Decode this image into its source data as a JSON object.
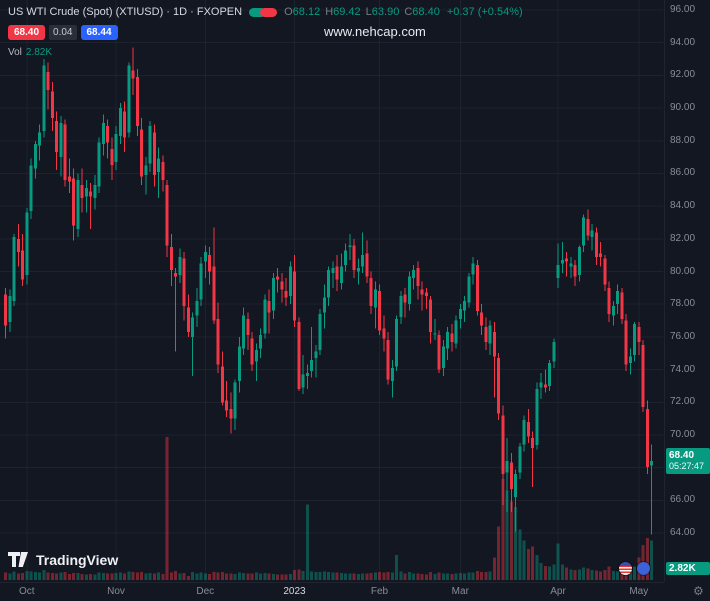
{
  "colors": {
    "bg": "#131722",
    "grid": "#1e222d",
    "up": "#089981",
    "down": "#f23645",
    "bid_bg": "#f23645",
    "ask_bg": "#2962ff",
    "badge_bg": "#089981",
    "text": "#d1d4dc",
    "text_dim": "#787b86"
  },
  "header": {
    "symbol_title": "US WTI Crude (Spot) (XTIUSD) · 1D · FXOPEN",
    "ohlc": [
      {
        "k": "O",
        "v": "68.12"
      },
      {
        "k": "H",
        "v": "69.42"
      },
      {
        "k": "L",
        "v": "63.90"
      },
      {
        "k": "C",
        "v": "68.40"
      }
    ],
    "change": "+0.37 (+0.54%)",
    "bid": "68.40",
    "spread": "0.04",
    "ask": "68.44",
    "vol_label": "Vol",
    "vol_value": "2.82K"
  },
  "watermark": "www.nehcap.com",
  "price_axis": {
    "last_price_label": "68.40",
    "countdown": "05:27:47",
    "volume_badge": "2.82K"
  },
  "footer": {
    "logo_text": "TradingView"
  },
  "icons": {
    "gear": "⚙"
  },
  "chart_data": {
    "type": "candlestick",
    "title": "US WTI Crude (Spot)",
    "symbol": "XTIUSD",
    "interval": "1D",
    "provider": "FXOPEN",
    "last_price": 68.4,
    "last_open": 68.12,
    "last_high": 69.42,
    "last_low": 63.9,
    "last_change": 0.37,
    "last_change_pct": 0.54,
    "current_volume": 2820,
    "price_range": [
      64,
      96
    ],
    "price_ticks": [
      [
        96,
        "96.00"
      ],
      [
        94,
        "94.00"
      ],
      [
        92,
        "92.00"
      ],
      [
        90,
        "90.00"
      ],
      [
        88,
        "88.00"
      ],
      [
        86,
        "86.00"
      ],
      [
        84,
        "84.00"
      ],
      [
        82,
        "82.00"
      ],
      [
        80,
        "80.00"
      ],
      [
        78,
        "78.00"
      ],
      [
        76,
        "76.00"
      ],
      [
        74,
        "74.00"
      ],
      [
        72,
        "72.00"
      ],
      [
        70,
        "70.00"
      ],
      [
        68,
        "68.00"
      ],
      [
        66,
        "66.00"
      ],
      [
        64,
        "64.00"
      ]
    ],
    "time_ticks": [
      [
        5,
        "Oct"
      ],
      [
        26,
        "Nov"
      ],
      [
        47,
        "Dec"
      ],
      [
        68,
        "2023"
      ],
      [
        88,
        "Feb"
      ],
      [
        107,
        "Mar"
      ],
      [
        130,
        "Apr"
      ],
      [
        149,
        "May"
      ]
    ],
    "candles": [
      [
        78.6,
        79.0,
        75.9,
        76.7,
        520
      ],
      [
        76.9,
        78.9,
        76.3,
        78.5,
        480
      ],
      [
        78.2,
        82.3,
        77.9,
        82.1,
        610
      ],
      [
        82.0,
        82.9,
        80.3,
        81.2,
        450
      ],
      [
        81.3,
        82.3,
        79.1,
        79.5,
        500
      ],
      [
        79.8,
        83.9,
        79.2,
        83.6,
        640
      ],
      [
        83.7,
        86.9,
        83.2,
        86.5,
        620
      ],
      [
        86.3,
        88.0,
        85.7,
        87.8,
        560
      ],
      [
        87.7,
        89.0,
        86.8,
        88.5,
        540
      ],
      [
        88.6,
        93.0,
        88.2,
        92.6,
        700
      ],
      [
        92.2,
        92.8,
        89.9,
        91.1,
        520
      ],
      [
        91.0,
        91.6,
        88.6,
        89.4,
        500
      ],
      [
        89.2,
        89.8,
        86.2,
        87.3,
        480
      ],
      [
        87.0,
        89.5,
        85.8,
        89.1,
        530
      ],
      [
        89.0,
        89.3,
        85.2,
        85.6,
        560
      ],
      [
        85.8,
        86.9,
        84.8,
        85.5,
        420
      ],
      [
        85.7,
        86.3,
        81.9,
        82.8,
        510
      ],
      [
        82.6,
        86.0,
        82.1,
        85.6,
        490
      ],
      [
        85.3,
        86.3,
        83.6,
        84.5,
        430
      ],
      [
        84.6,
        85.6,
        83.6,
        85.1,
        410
      ],
      [
        84.9,
        85.4,
        82.6,
        84.6,
        440
      ],
      [
        84.5,
        85.9,
        83.8,
        85.3,
        400
      ],
      [
        85.2,
        88.2,
        84.8,
        87.9,
        520
      ],
      [
        87.8,
        89.6,
        87.1,
        89.1,
        500
      ],
      [
        88.9,
        89.3,
        86.9,
        87.9,
        460
      ],
      [
        87.5,
        88.2,
        85.6,
        86.5,
        480
      ],
      [
        86.7,
        88.9,
        86.2,
        88.4,
        510
      ],
      [
        88.3,
        90.3,
        87.8,
        90.0,
        540
      ],
      [
        89.8,
        90.4,
        87.3,
        88.2,
        470
      ],
      [
        88.5,
        92.8,
        88.2,
        92.6,
        620
      ],
      [
        92.3,
        93.7,
        90.8,
        91.8,
        560
      ],
      [
        91.9,
        92.4,
        88.3,
        88.9,
        540
      ],
      [
        88.7,
        89.4,
        85.3,
        85.8,
        560
      ],
      [
        85.9,
        87.0,
        84.7,
        86.5,
        480
      ],
      [
        86.6,
        89.2,
        86.1,
        88.9,
        500
      ],
      [
        88.5,
        89.0,
        85.2,
        85.9,
        470
      ],
      [
        86.1,
        87.6,
        84.5,
        86.9,
        520
      ],
      [
        86.7,
        87.1,
        84.9,
        85.6,
        430
      ],
      [
        85.3,
        85.6,
        80.9,
        81.6,
        10200
      ],
      [
        81.5,
        82.3,
        79.1,
        80.1,
        540
      ],
      [
        79.9,
        80.2,
        75.1,
        79.7,
        640
      ],
      [
        79.8,
        81.4,
        79.3,
        80.9,
        460
      ],
      [
        80.8,
        81.2,
        77.0,
        77.9,
        500
      ],
      [
        77.8,
        78.6,
        76.0,
        76.3,
        300
      ],
      [
        76.0,
        77.5,
        73.6,
        77.2,
        560
      ],
      [
        77.3,
        79.0,
        76.6,
        78.2,
        480
      ],
      [
        78.3,
        80.9,
        77.9,
        80.5,
        520
      ],
      [
        80.6,
        81.6,
        79.6,
        81.2,
        460
      ],
      [
        81.0,
        81.5,
        79.2,
        80.0,
        430
      ],
      [
        80.3,
        82.7,
        76.8,
        77.0,
        560
      ],
      [
        77.1,
        78.1,
        73.8,
        74.3,
        540
      ],
      [
        74.2,
        75.1,
        71.8,
        72.0,
        560
      ],
      [
        72.1,
        73.3,
        71.1,
        71.5,
        480
      ],
      [
        71.6,
        72.6,
        70.1,
        71.0,
        460
      ],
      [
        71.0,
        73.4,
        70.3,
        73.2,
        440
      ],
      [
        73.3,
        76.0,
        72.6,
        75.4,
        520
      ],
      [
        75.3,
        77.8,
        74.9,
        77.3,
        500
      ],
      [
        77.1,
        77.5,
        75.2,
        76.1,
        470
      ],
      [
        75.9,
        76.3,
        73.9,
        74.3,
        470
      ],
      [
        74.5,
        75.6,
        73.3,
        75.2,
        520
      ],
      [
        75.3,
        76.5,
        74.7,
        76.1,
        480
      ],
      [
        76.2,
        78.6,
        75.9,
        78.3,
        500
      ],
      [
        78.2,
        78.9,
        76.2,
        77.5,
        460
      ],
      [
        77.6,
        79.9,
        77.1,
        79.6,
        420
      ],
      [
        79.7,
        80.2,
        78.7,
        79.5,
        380
      ],
      [
        79.4,
        79.9,
        78.1,
        78.9,
        400
      ],
      [
        78.8,
        79.6,
        77.9,
        78.4,
        390
      ],
      [
        78.5,
        80.6,
        78.0,
        80.3,
        430
      ],
      [
        80.0,
        81.0,
        76.6,
        77.0,
        700
      ],
      [
        76.9,
        77.2,
        72.7,
        72.8,
        760
      ],
      [
        72.9,
        74.9,
        72.5,
        73.7,
        650
      ],
      [
        73.6,
        74.3,
        72.8,
        73.8,
        5400
      ],
      [
        73.9,
        76.6,
        73.5,
        74.6,
        620
      ],
      [
        74.7,
        75.5,
        73.5,
        75.1,
        560
      ],
      [
        75.2,
        77.7,
        74.9,
        77.4,
        580
      ],
      [
        77.5,
        79.2,
        76.5,
        78.4,
        600
      ],
      [
        78.4,
        80.3,
        77.9,
        80.1,
        560
      ],
      [
        79.9,
        80.6,
        79.0,
        80.2,
        520
      ],
      [
        80.3,
        81.0,
        78.8,
        79.5,
        540
      ],
      [
        79.3,
        81.1,
        78.9,
        80.3,
        500
      ],
      [
        80.4,
        81.7,
        80.0,
        81.3,
        480
      ],
      [
        81.5,
        82.3,
        80.7,
        81.6,
        460
      ],
      [
        81.6,
        82.0,
        79.6,
        80.1,
        470
      ],
      [
        80.0,
        80.8,
        79.2,
        80.2,
        430
      ],
      [
        80.3,
        82.4,
        79.9,
        81.0,
        480
      ],
      [
        81.1,
        81.9,
        79.3,
        79.7,
        460
      ],
      [
        79.6,
        80.0,
        77.4,
        77.9,
        500
      ],
      [
        77.8,
        79.4,
        76.5,
        78.9,
        520
      ],
      [
        78.8,
        79.2,
        76.1,
        76.4,
        560
      ],
      [
        76.5,
        77.3,
        75.1,
        75.9,
        520
      ],
      [
        75.8,
        76.3,
        73.1,
        73.4,
        580
      ],
      [
        73.3,
        74.6,
        72.3,
        74.1,
        540
      ],
      [
        74.2,
        77.3,
        73.9,
        77.1,
        1800
      ],
      [
        77.2,
        78.8,
        76.8,
        78.5,
        620
      ],
      [
        78.6,
        79.0,
        77.2,
        78.1,
        480
      ],
      [
        78.0,
        80.0,
        77.6,
        79.7,
        560
      ],
      [
        79.6,
        80.4,
        78.9,
        80.1,
        460
      ],
      [
        80.2,
        80.6,
        78.3,
        79.1,
        480
      ],
      [
        78.9,
        79.4,
        77.6,
        78.6,
        440
      ],
      [
        78.7,
        79.0,
        77.7,
        78.5,
        400
      ],
      [
        78.3,
        78.5,
        75.6,
        76.3,
        560
      ],
      [
        76.2,
        77.1,
        75.8,
        76.2,
        440
      ],
      [
        76.1,
        76.4,
        73.8,
        74.0,
        520
      ],
      [
        74.1,
        75.8,
        73.6,
        75.4,
        480
      ],
      [
        75.3,
        76.6,
        74.6,
        76.3,
        460
      ],
      [
        76.2,
        76.8,
        75.1,
        75.7,
        420
      ],
      [
        75.6,
        77.3,
        75.3,
        77.0,
        480
      ],
      [
        77.1,
        78.0,
        76.5,
        77.7,
        500
      ],
      [
        77.6,
        78.5,
        76.9,
        78.2,
        460
      ],
      [
        78.1,
        79.9,
        77.8,
        79.7,
        520
      ],
      [
        79.8,
        80.9,
        79.2,
        80.5,
        540
      ],
      [
        80.4,
        80.7,
        77.3,
        77.6,
        640
      ],
      [
        77.5,
        78.0,
        76.1,
        76.7,
        580
      ],
      [
        76.6,
        77.2,
        75.2,
        75.7,
        560
      ],
      [
        75.6,
        77.0,
        74.9,
        76.7,
        600
      ],
      [
        76.3,
        76.9,
        72.3,
        74.8,
        1600
      ],
      [
        74.7,
        75.0,
        70.9,
        71.3,
        3800
      ],
      [
        71.2,
        71.8,
        65.7,
        67.6,
        7200
      ],
      [
        67.7,
        69.8,
        65.3,
        68.4,
        6400
      ],
      [
        68.3,
        68.9,
        65.3,
        66.7,
        5600
      ],
      [
        66.2,
        67.9,
        64.1,
        67.6,
        5200
      ],
      [
        67.7,
        69.5,
        67.3,
        69.3,
        3600
      ],
      [
        69.4,
        71.2,
        69.0,
        70.9,
        2800
      ],
      [
        70.8,
        71.6,
        69.5,
        69.9,
        2200
      ],
      [
        69.8,
        70.2,
        66.8,
        69.2,
        2400
      ],
      [
        69.4,
        73.2,
        69.1,
        72.8,
        1800
      ],
      [
        72.9,
        73.8,
        72.2,
        73.2,
        1200
      ],
      [
        73.1,
        74.0,
        72.6,
        72.9,
        1000
      ],
      [
        73.0,
        74.6,
        72.7,
        74.4,
        980
      ],
      [
        74.5,
        75.9,
        74.1,
        75.7,
        1100
      ],
      [
        79.6,
        81.7,
        79.0,
        80.4,
        2600
      ],
      [
        80.5,
        81.8,
        79.9,
        80.7,
        1100
      ],
      [
        80.8,
        81.2,
        79.7,
        80.6,
        900
      ],
      [
        80.3,
        80.9,
        79.6,
        80.5,
        760
      ],
      [
        80.4,
        80.7,
        79.1,
        79.7,
        700
      ],
      [
        79.8,
        81.6,
        79.4,
        81.5,
        760
      ],
      [
        81.6,
        83.5,
        81.2,
        83.3,
        900
      ],
      [
        83.2,
        83.8,
        81.9,
        82.2,
        820
      ],
      [
        82.1,
        82.9,
        81.3,
        82.5,
        700
      ],
      [
        82.4,
        82.7,
        80.4,
        80.9,
        680
      ],
      [
        81.1,
        81.8,
        80.3,
        80.9,
        600
      ],
      [
        80.8,
        81.0,
        78.8,
        79.2,
        720
      ],
      [
        79.0,
        79.4,
        76.9,
        77.4,
        980
      ],
      [
        77.3,
        78.2,
        76.7,
        77.9,
        640
      ],
      [
        78.0,
        79.2,
        77.4,
        78.8,
        600
      ],
      [
        78.7,
        79.0,
        76.8,
        77.1,
        680
      ],
      [
        77.0,
        77.4,
        73.9,
        74.3,
        1200
      ],
      [
        74.4,
        75.3,
        73.7,
        74.8,
        900
      ],
      [
        74.9,
        76.9,
        74.5,
        76.8,
        950
      ],
      [
        76.6,
        76.9,
        74.9,
        75.7,
        1600
      ],
      [
        75.5,
        75.8,
        71.4,
        71.7,
        2500
      ],
      [
        71.6,
        72.1,
        67.6,
        68.03,
        3000
      ],
      [
        68.12,
        69.42,
        63.9,
        68.4,
        2820
      ]
    ]
  }
}
